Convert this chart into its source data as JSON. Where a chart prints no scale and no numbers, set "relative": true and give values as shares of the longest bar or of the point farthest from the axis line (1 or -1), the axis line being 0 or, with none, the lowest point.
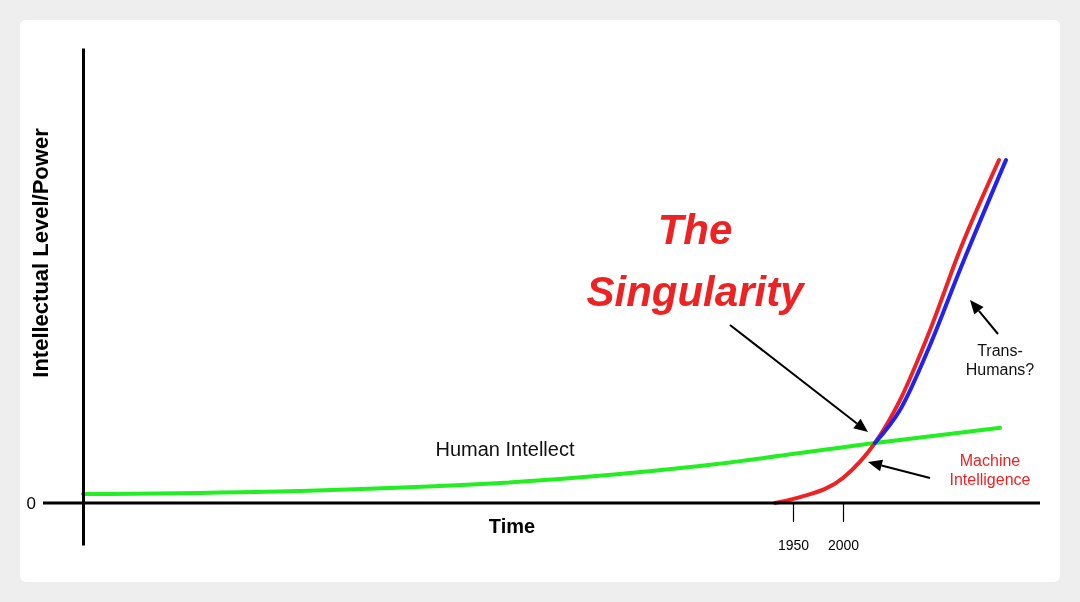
{
  "chart_data": {
    "type": "line",
    "title": "The Singularity",
    "xlabel": "Time",
    "ylabel": "Intellectual Level/Power",
    "relative": true,
    "xlim": [
      1240,
      2197
    ],
    "xticks": [
      1950,
      2000
    ],
    "annotations": [
      "0"
    ],
    "series": [
      {
        "name": "Human Intellect",
        "color": "#22ee22",
        "x": [
          1240,
          1457,
          1657,
          1857,
          2032,
          2157
        ],
        "values": [
          0.026,
          0.035,
          0.058,
          0.108,
          0.175,
          0.219
        ]
      },
      {
        "name": "Machine Intelligence",
        "color": "#ee2222",
        "x": [
          1932,
          1957,
          2000,
          2032,
          2057,
          2087,
          2117,
          2156
        ],
        "values": [
          0,
          0.017,
          0.073,
          0.175,
          0.3,
          0.504,
          0.738,
          1
        ]
      },
      {
        "name": "Trans-Humans?",
        "color": "#2222ee",
        "x": [
          2032,
          2057,
          2087,
          2117,
          2163
        ],
        "values": [
          0.175,
          0.271,
          0.46,
          0.68,
          1
        ]
      }
    ]
  }
}
